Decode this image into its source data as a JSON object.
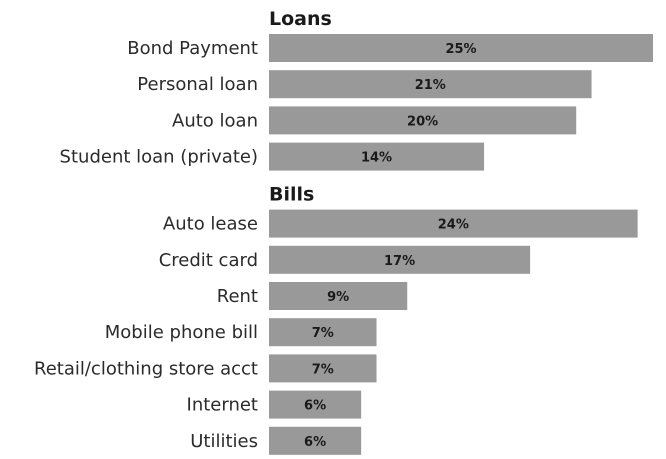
{
  "chart_data": {
    "type": "bar",
    "orientation": "horizontal",
    "value_suffix": "%",
    "groups": [
      {
        "title": "Loans",
        "categories": [
          "Bond Payment",
          "Personal loan",
          "Auto loan",
          "Student loan (private)"
        ],
        "values": [
          25,
          21,
          20,
          14
        ]
      },
      {
        "title": "Bills",
        "categories": [
          "Auto lease",
          "Credit card",
          "Rent",
          "Mobile phone bill",
          "Retail/clothing store acct",
          "Internet",
          "Utilities"
        ],
        "values": [
          24,
          17,
          9,
          7,
          7,
          6,
          6
        ]
      }
    ],
    "bar_color": "#999999",
    "grid": false,
    "legend": "none"
  }
}
